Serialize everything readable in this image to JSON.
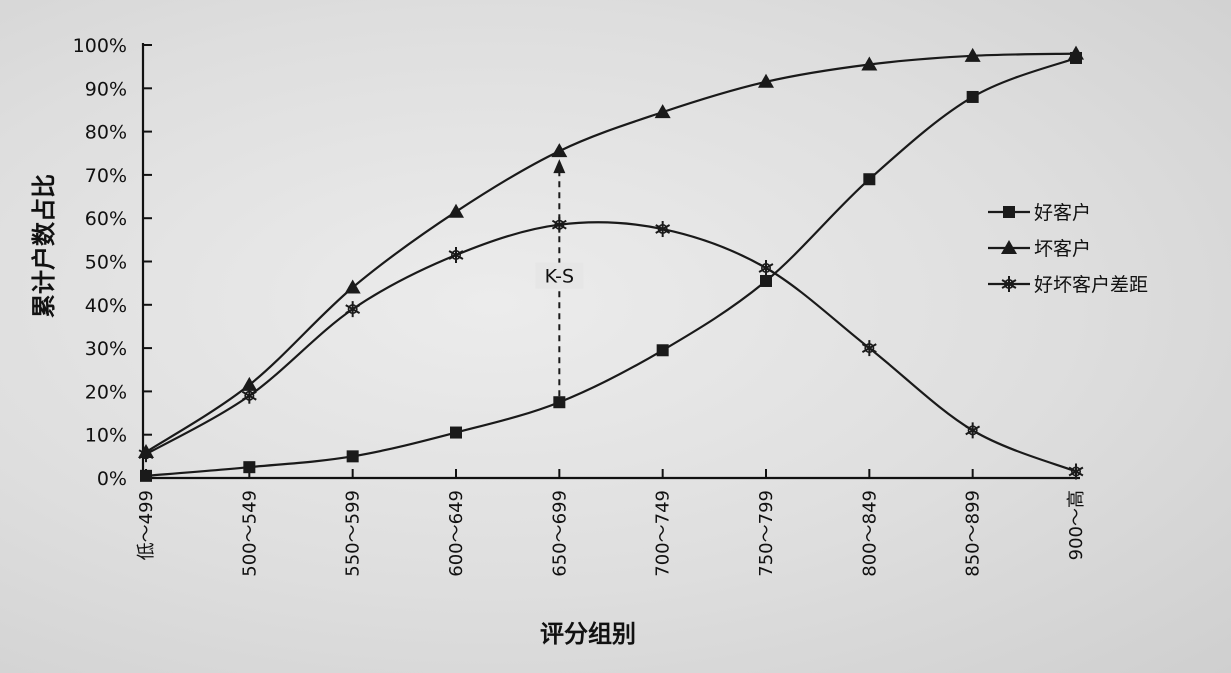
{
  "chart_data": {
    "type": "line",
    "ylabel": "累计户数占比",
    "xlabel": "评分组别",
    "categories": [
      "低～499",
      "500～549",
      "550～599",
      "600～649",
      "650～699",
      "700～749",
      "750～799",
      "800～849",
      "850～899",
      "900～高"
    ],
    "y_ticks": [
      "0%",
      "10%",
      "20%",
      "30%",
      "40%",
      "50%",
      "60%",
      "70%",
      "80%",
      "90%",
      "100%"
    ],
    "ylim": [
      0,
      100
    ],
    "grid": false,
    "legend_position": "right",
    "series": [
      {
        "name": "好客户",
        "marker": "square",
        "values": [
          0.5,
          2.5,
          5,
          10.5,
          17.5,
          29.5,
          45.5,
          69,
          88,
          97
        ]
      },
      {
        "name": "坏客户",
        "marker": "triangle",
        "values": [
          6,
          21.5,
          44,
          61.5,
          75.5,
          84.5,
          91.5,
          95.5,
          97.5,
          98
        ]
      },
      {
        "name": "好坏客户差距",
        "marker": "asterisk",
        "values": [
          5.5,
          19,
          39,
          51.5,
          58.5,
          57.5,
          48.5,
          30,
          11,
          1.5
        ]
      }
    ],
    "annotations": [
      {
        "text": "K-S",
        "category": "650～699",
        "from": 17.5,
        "to": 75.5
      }
    ]
  }
}
